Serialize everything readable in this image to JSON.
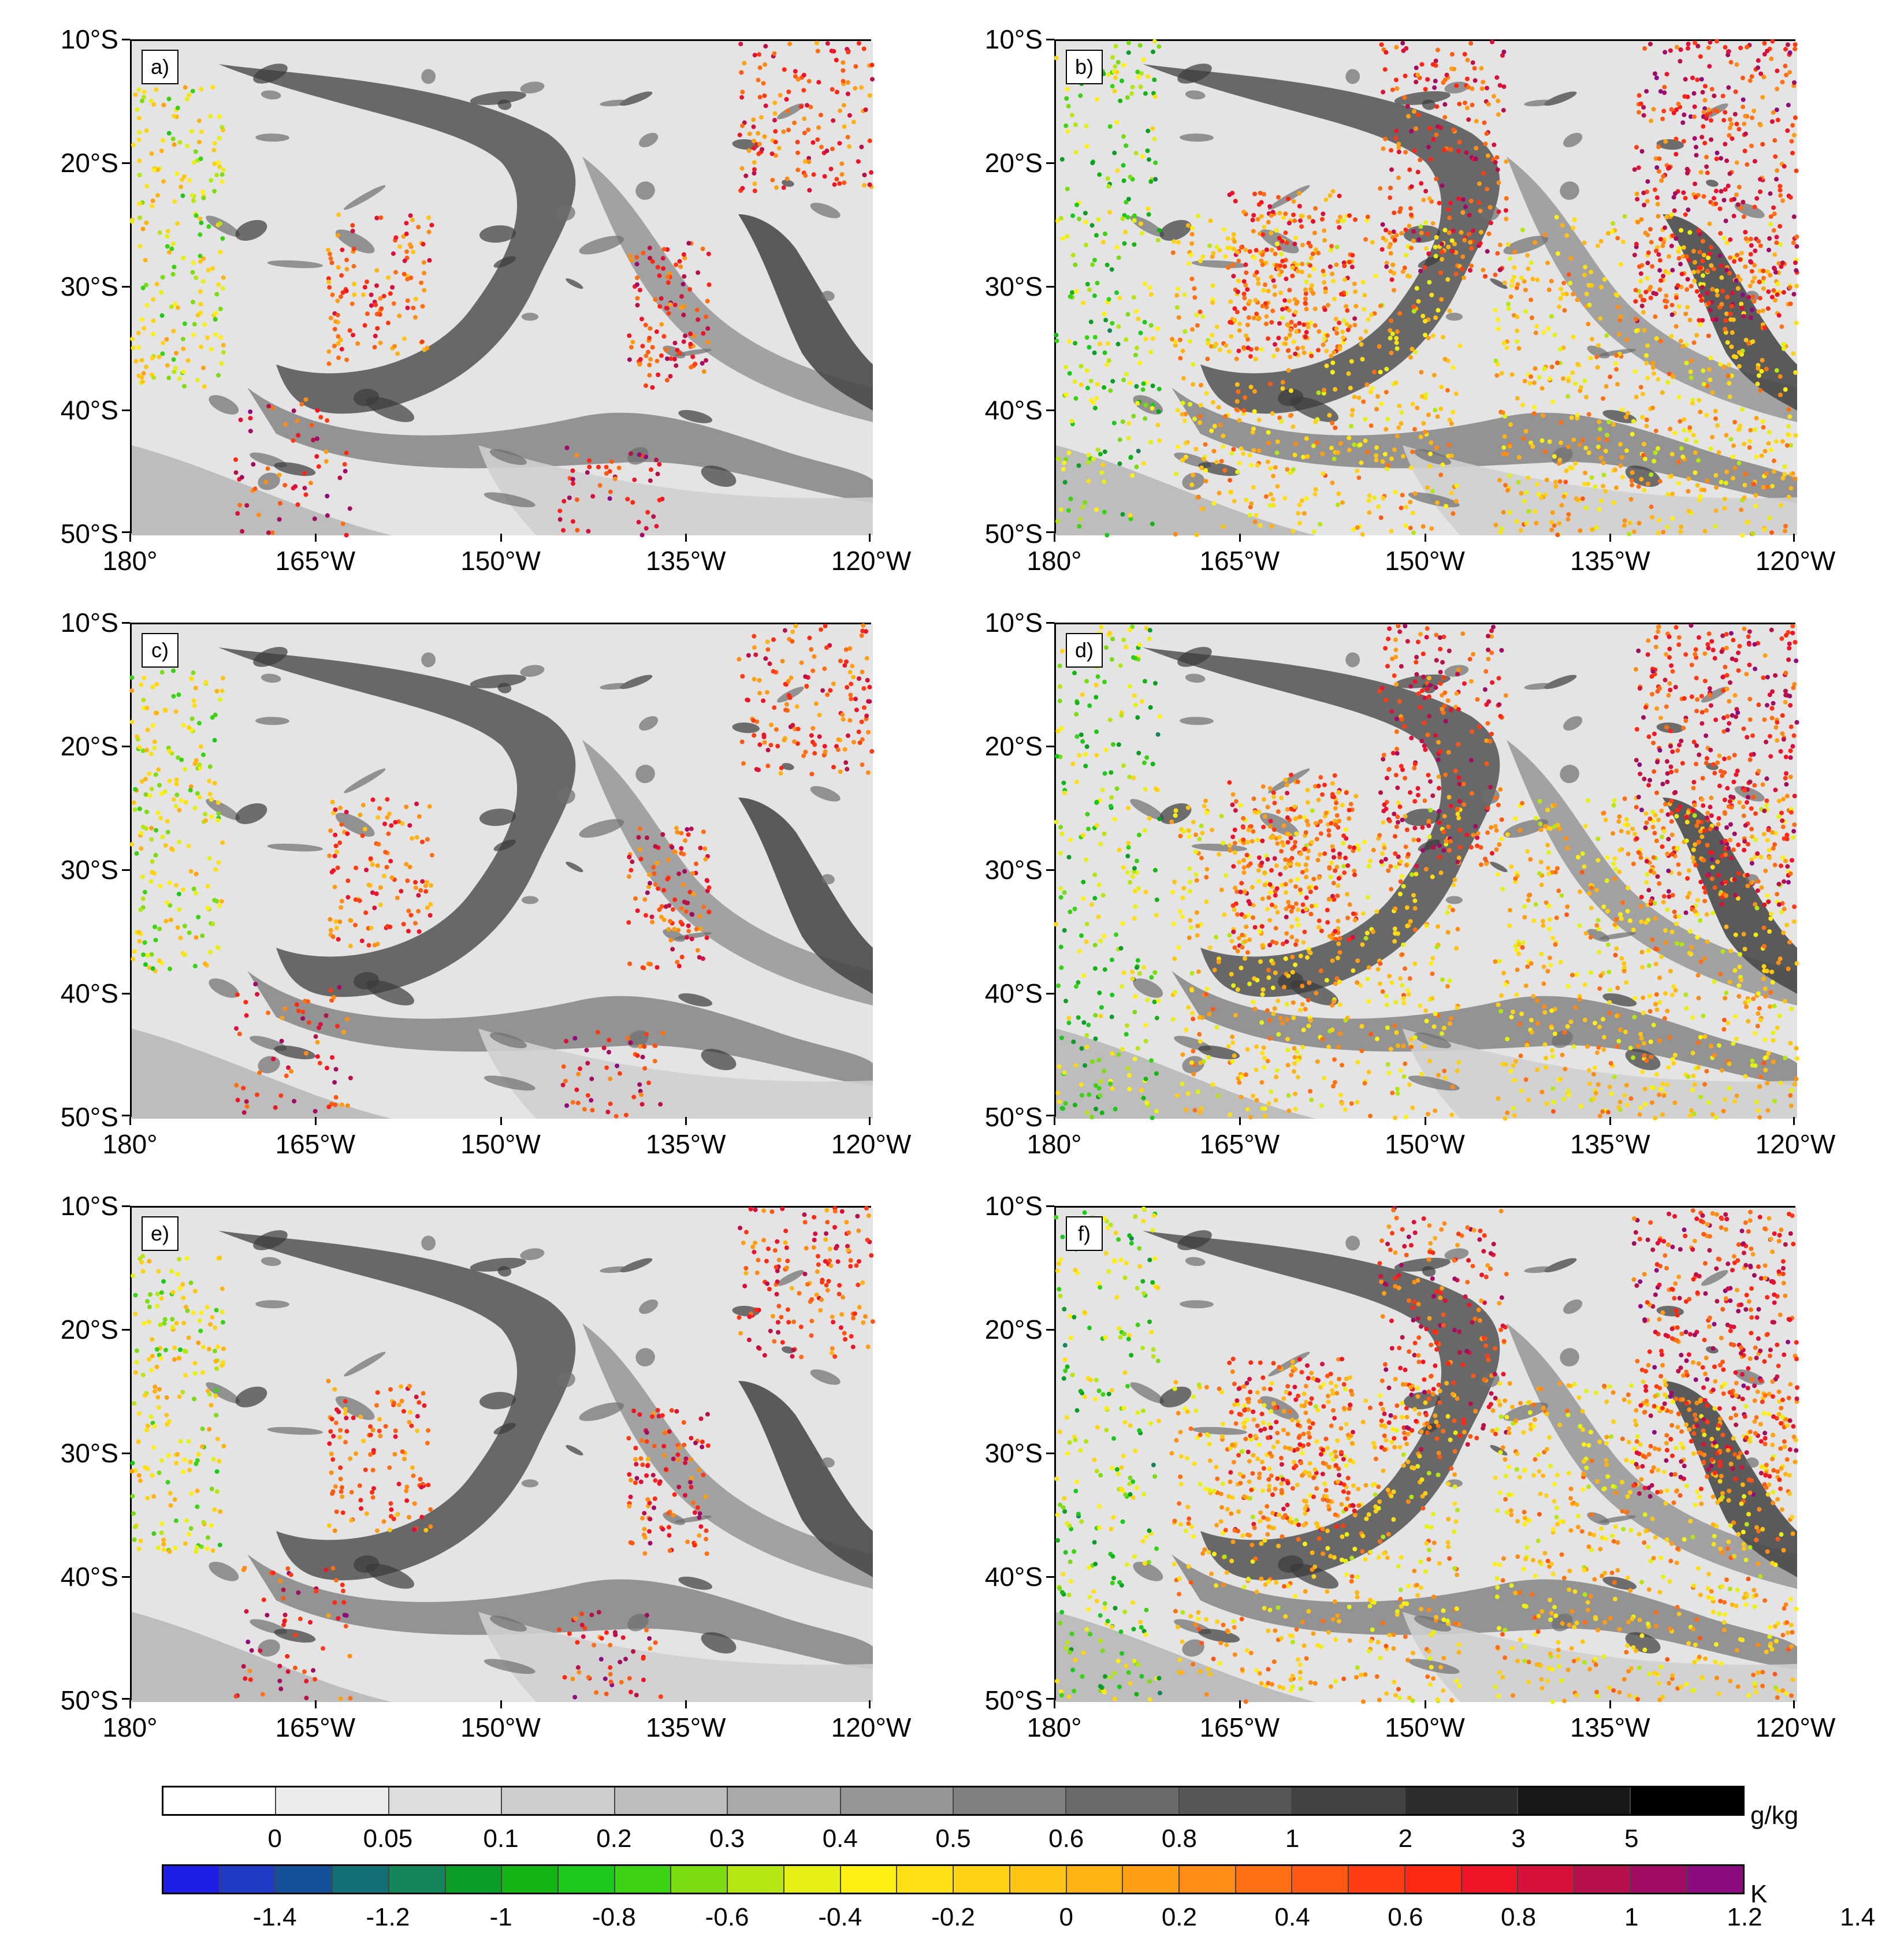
{
  "figure": {
    "panels": [
      {
        "label": "a)"
      },
      {
        "label": "b)"
      },
      {
        "label": "c)"
      },
      {
        "label": "d)"
      },
      {
        "label": "e)"
      },
      {
        "label": "f)"
      }
    ],
    "lat_ticks": [
      "10°S",
      "20°S",
      "30°S",
      "40°S",
      "50°S"
    ],
    "lon_ticks": [
      "180°",
      "165°W",
      "150°W",
      "135°W",
      "120°W"
    ],
    "extent": {
      "lon_min": -180,
      "lon_max": -120,
      "lat_min": -50,
      "lat_max": -10
    }
  },
  "colorbar_gray": {
    "unit": "g/kg",
    "labels": [
      "0",
      "0.05",
      "0.1",
      "0.2",
      "0.3",
      "0.4",
      "0.5",
      "0.6",
      "0.8",
      "1",
      "2",
      "3",
      "5"
    ],
    "colors": [
      "#ffffff",
      "#ececec",
      "#dddddd",
      "#cecece",
      "#bdbdbd",
      "#a9a9a9",
      "#959595",
      "#808080",
      "#6b6b6b",
      "#575757",
      "#424242",
      "#2d2d2d",
      "#181818",
      "#000000"
    ]
  },
  "colorbar_color": {
    "unit": "K",
    "labels": [
      "-1.4",
      "-1.2",
      "-1",
      "-0.8",
      "-0.6",
      "-0.4",
      "-0.2",
      "0",
      "0.2",
      "0.4",
      "0.6",
      "0.8",
      "1",
      "1.2",
      "1.4"
    ],
    "colors": [
      "#1e1ee6",
      "#1e3cc8",
      "#14509a",
      "#147078",
      "#14845a",
      "#0c9c28",
      "#14b414",
      "#1cc81c",
      "#3cd214",
      "#7cdc14",
      "#b4e614",
      "#e6f014",
      "#fff014",
      "#ffe014",
      "#ffd214",
      "#ffc414",
      "#ffb414",
      "#ffa014",
      "#ff8c14",
      "#ff7014",
      "#ff5814",
      "#ff3c14",
      "#ff2814",
      "#f01428",
      "#d8103c",
      "#b8104c",
      "#a00c64",
      "#8c0c80"
    ]
  }
}
